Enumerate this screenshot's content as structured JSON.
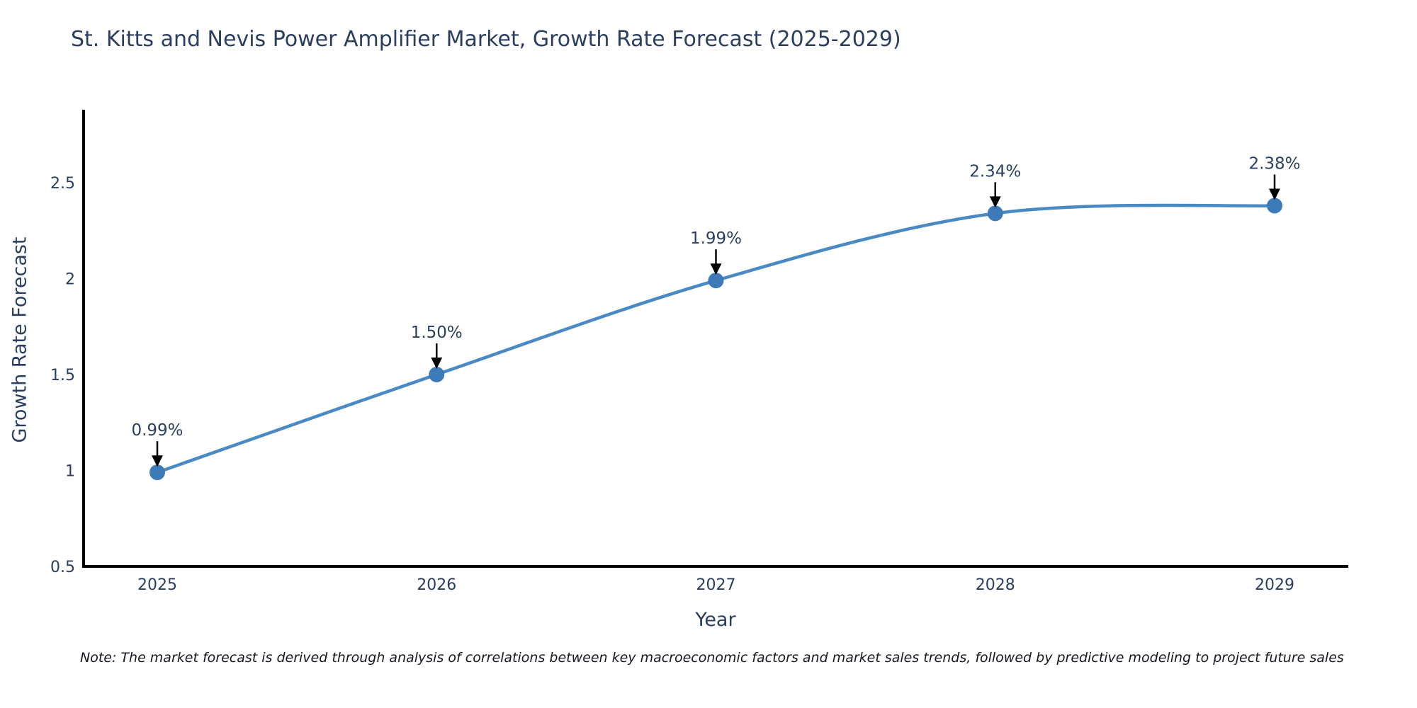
{
  "chart_data": {
    "type": "line",
    "title": "St. Kitts and Nevis Power Amplifier Market, Growth Rate Forecast (2025-2029)",
    "xlabel": "Year",
    "ylabel": "Growth Rate Forecast",
    "categories": [
      "2025",
      "2026",
      "2027",
      "2028",
      "2029"
    ],
    "values": [
      0.99,
      1.5,
      1.99,
      2.34,
      2.38
    ],
    "point_labels": [
      "0.99%",
      "1.50%",
      "1.99%",
      "2.34%",
      "2.38%"
    ],
    "y_ticks": [
      0.5,
      1,
      1.5,
      2,
      2.5
    ],
    "y_tick_labels": [
      "0.5",
      "1",
      "1.5",
      "2",
      "2.5"
    ],
    "ylim": [
      0.5,
      2.88
    ],
    "line_shape": "spline",
    "grid": false,
    "legend_position": "none",
    "colors": {
      "line": "#4a8ac4",
      "marker": "#3d7ab8",
      "axis": "#000000",
      "tick_text": "#2a3f5f",
      "annotation_text": "#2a3f5f",
      "annotation_arrow": "#000000",
      "background": "#ffffff"
    }
  },
  "note": {
    "text": "Note: The market forecast is derived through analysis of correlations between key macroeconomic factors and market sales trends, followed by predictive modeling to project future sales"
  }
}
